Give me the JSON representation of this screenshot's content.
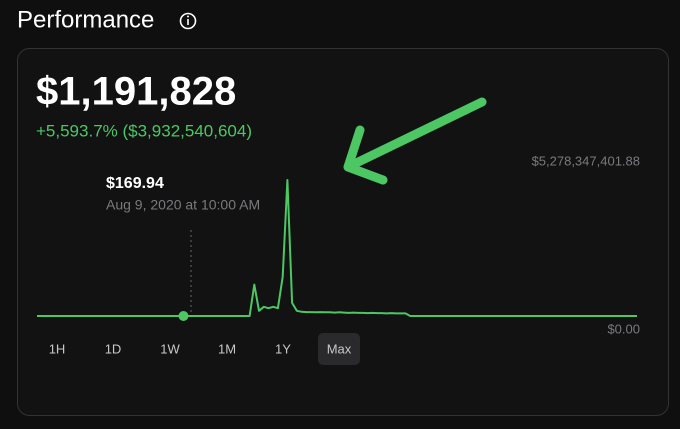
{
  "header": {
    "title": "Performance"
  },
  "chart_data": {
    "type": "line",
    "value": "$1,191,828",
    "change": "+5,593.7% ($3,932,540,604)",
    "tooltip": {
      "value": "$169.94",
      "date": "Aug 9, 2020 at 10:00 AM",
      "index": 31
    },
    "ylim": [
      0,
      5278347401.88
    ],
    "yticks": [
      {
        "value": 0,
        "label": "$0.00"
      },
      {
        "value": 5278347401.88,
        "label": "$5,278,347,401.88"
      }
    ],
    "color": "#4cc764",
    "values": [
      0,
      0,
      0,
      0,
      0,
      0,
      0,
      0,
      0,
      0,
      0,
      0,
      0,
      0,
      0,
      0,
      0,
      0,
      0,
      0,
      0,
      0,
      0,
      0,
      0,
      0,
      0,
      0,
      0,
      0,
      0,
      169.94,
      0,
      0,
      0,
      0,
      0,
      0,
      0,
      0,
      0,
      0,
      0,
      0,
      0,
      0,
      1200000000,
      200000000,
      350000000,
      300000000,
      350000000,
      300000000,
      1500000000,
      5200000000,
      500000000,
      200000000,
      160000000,
      150000000,
      150000000,
      140000000,
      150000000,
      140000000,
      140000000,
      130000000,
      140000000,
      130000000,
      120000000,
      130000000,
      120000000,
      120000000,
      110000000,
      120000000,
      110000000,
      110000000,
      100000000,
      110000000,
      100000000,
      100000000,
      100000000,
      0,
      0,
      0,
      0,
      0,
      0,
      0,
      0,
      0,
      0,
      0,
      0,
      0,
      0,
      0,
      0,
      0,
      0,
      0,
      0,
      0,
      0,
      0,
      0,
      0,
      0,
      0,
      0,
      0,
      0,
      0,
      0,
      0,
      0,
      0,
      0,
      0,
      0,
      0,
      0,
      0,
      0,
      0,
      0,
      0,
      0,
      0,
      0,
      0
    ],
    "ranges": [
      "1H",
      "1D",
      "1W",
      "1M",
      "1Y",
      "Max"
    ],
    "selected_range": 5
  }
}
